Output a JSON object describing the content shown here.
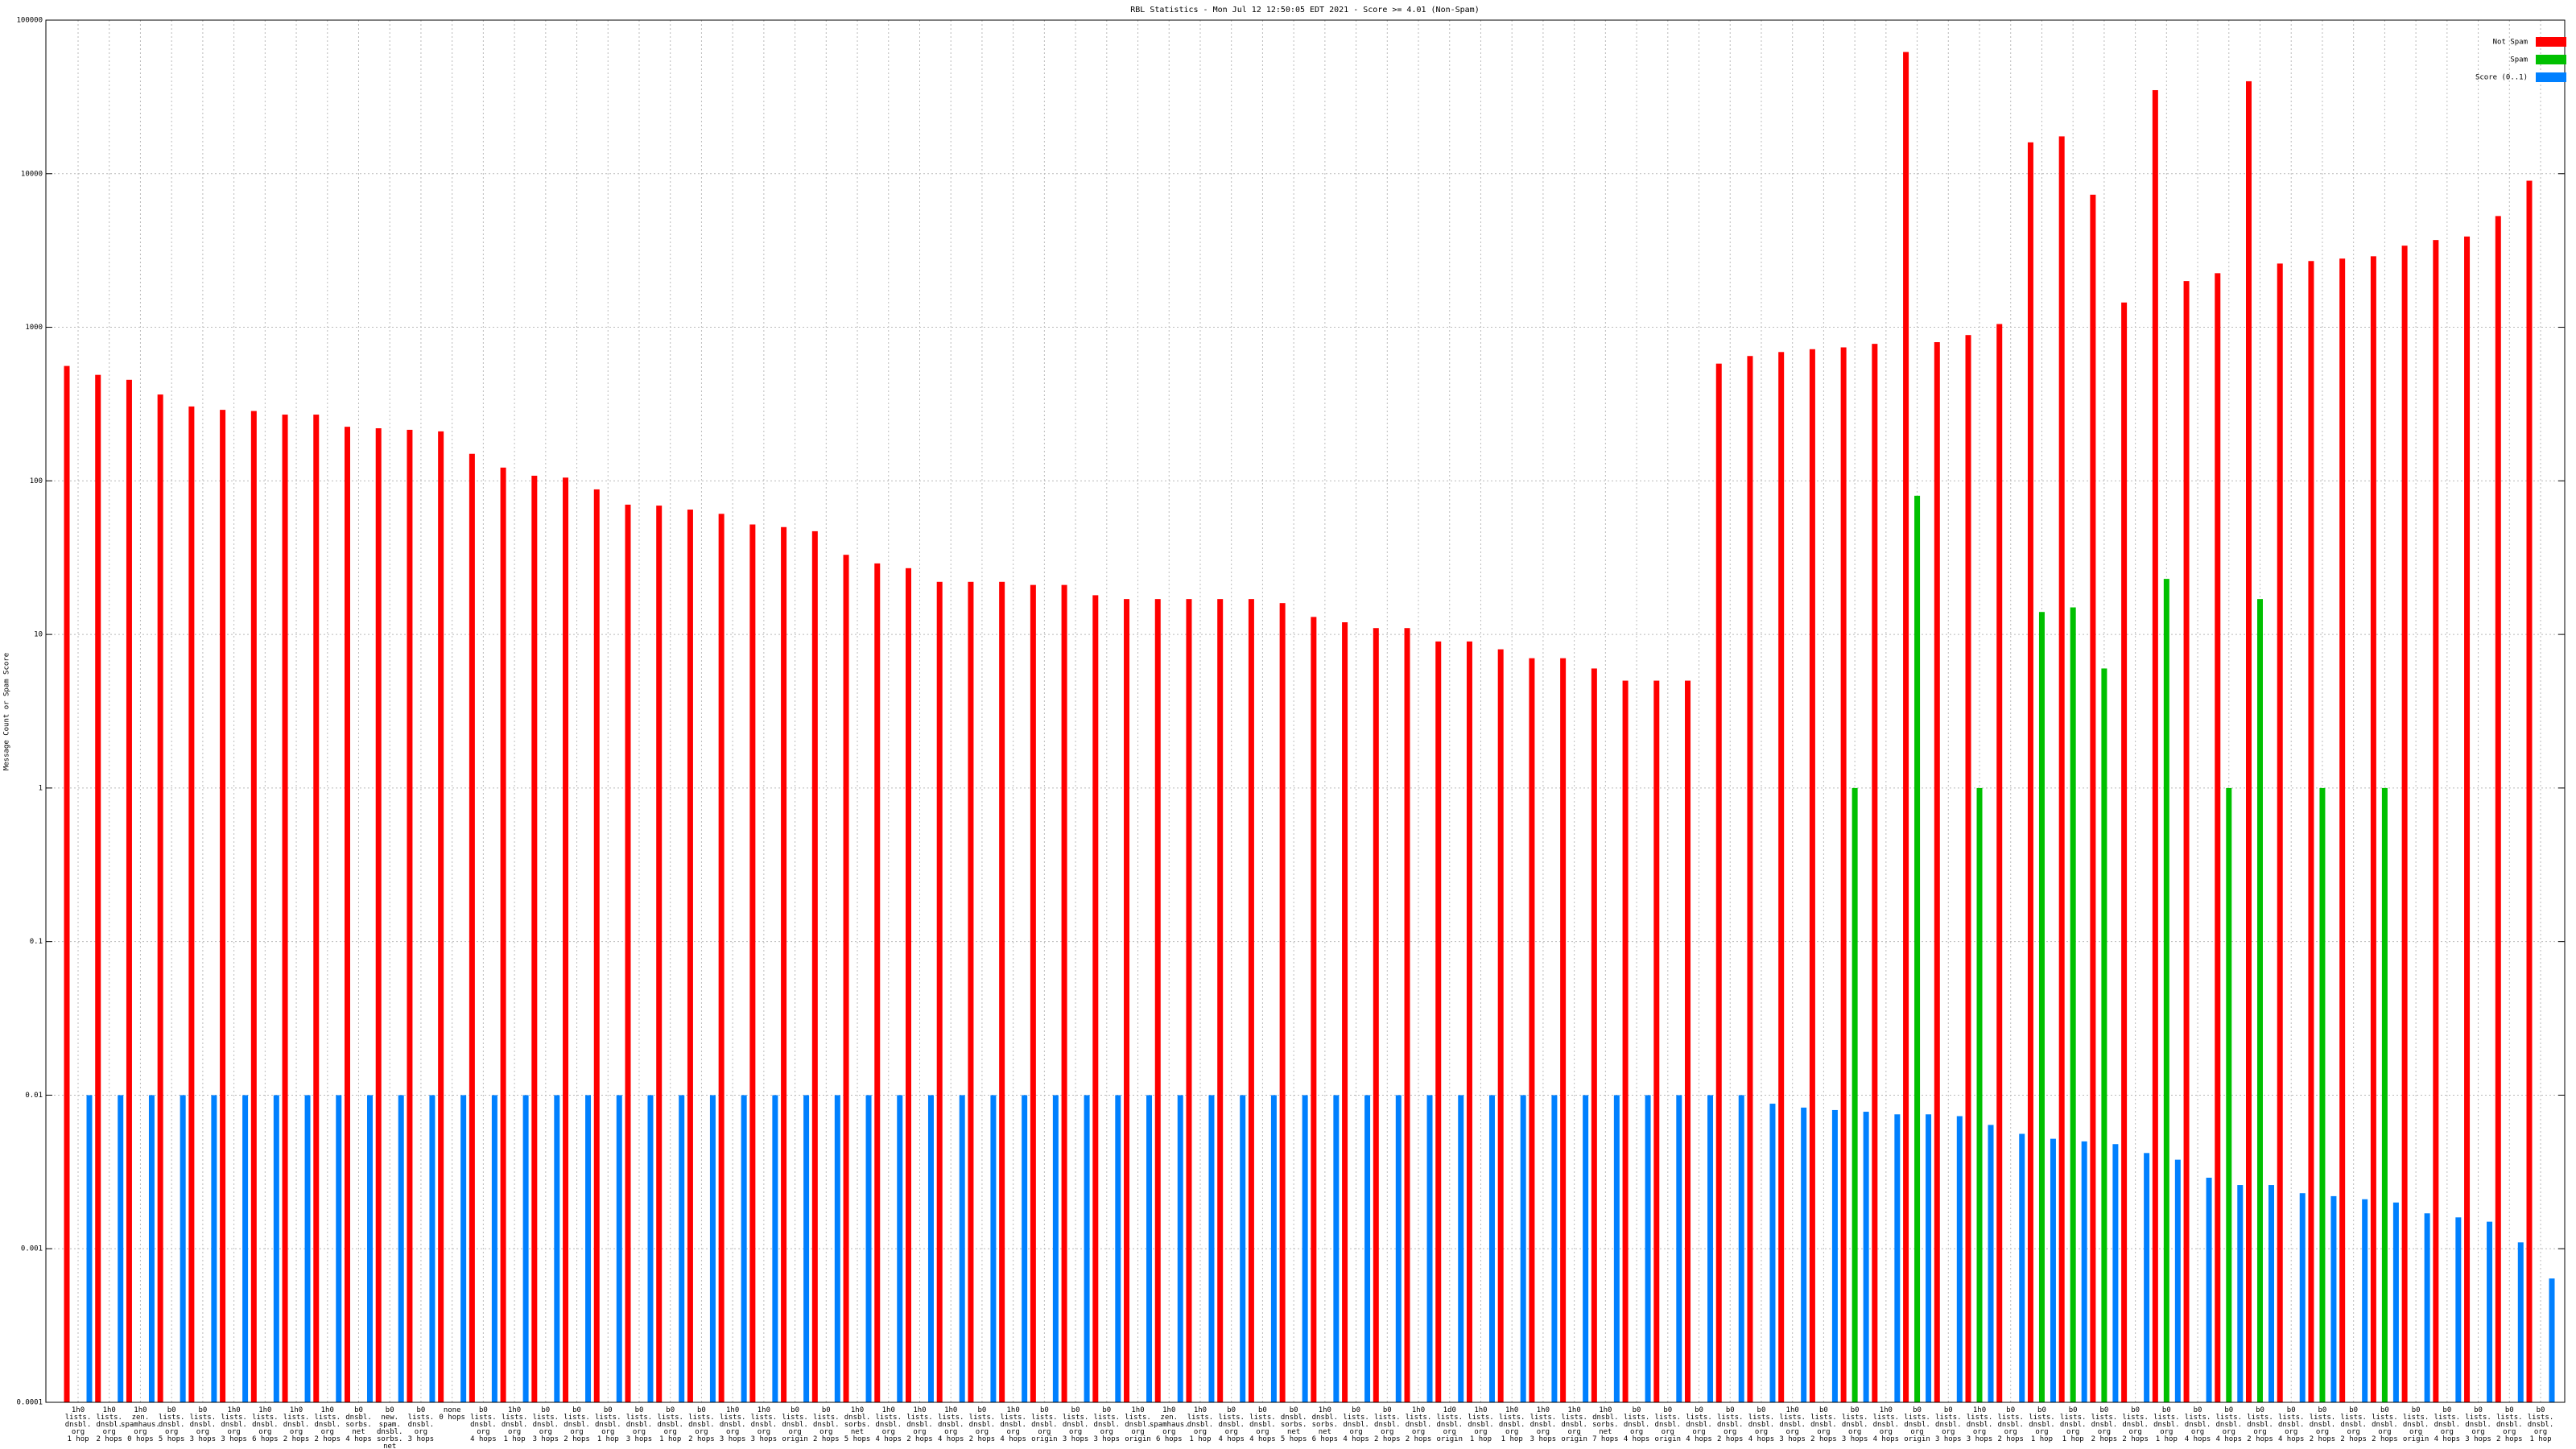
{
  "chart_data": {
    "type": "bar",
    "title": "RBL Statistics - Mon Jul 12 12:50:05 EDT 2021 - Score >= 4.01 (Non-Spam)",
    "y_label": "Message Count or Spam Score",
    "log_scale": true,
    "grid": true,
    "legend": "top-right",
    "ylim": [
      0.0001,
      100000
    ],
    "yticks": [
      0.0001,
      0.001,
      0.01,
      0.1,
      1,
      10,
      100,
      1000,
      10000,
      100000
    ],
    "categories": [
      "1h0\nlists.\ndnsbl.\norg\n1 hop",
      "1h0\nlists.\ndnsbl.\norg\n2 hops",
      "1h0\nzen.\nspamhaus.\norg\n0 hops",
      "b0\nlists.\ndnsbl.\norg\n5 hops",
      "b0\nlists.\ndnsbl.\norg\n3 hops",
      "1h0\nlists.\ndnsbl.\norg\n3 hops",
      "1h0\nlists.\ndnsbl.\norg\n6 hops",
      "1h0\nlists.\ndnsbl.\norg\n2 hops",
      "1h0\nlists.\ndnsbl.\norg\n2 hops",
      "b0\ndnsbl.\nsorbs.\nnet\n4 hops",
      "b0\nnew.\nspam.\ndnsbl.\nsorbs.\nnet\n4 hops",
      "b0\nlists.\ndnsbl.\norg\n3 hops",
      "none\n0 hops",
      "b0\nlists.\ndnsbl.\norg\n4 hops",
      "1h0\nlists.\ndnsbl.\norg\n1 hop",
      "b0\nlists.\ndnsbl.\norg\n3 hops",
      "b0\nlists.\ndnsbl.\norg\n2 hops",
      "b0\nlists.\ndnsbl.\norg\n1 hop",
      "b0\nlists.\ndnsbl.\norg\n3 hops",
      "b0\nlists.\ndnsbl.\norg\n1 hop",
      "b0\nlists.\ndnsbl.\norg\n2 hops",
      "1h0\nlists.\ndnsbl.\norg\n3 hops",
      "1h0\nlists.\ndnsbl.\norg\n3 hops",
      "b0\nlists.\ndnsbl.\norg\norigin",
      "b0\nlists.\ndnsbl.\norg\n2 hops",
      "1h0\ndnsbl.\nsorbs.\nnet\n5 hops",
      "1h0\nlists.\ndnsbl.\norg\n4 hops",
      "1h0\nlists.\ndnsbl.\norg\n2 hops",
      "1h0\nlists.\ndnsbl.\norg\n4 hops",
      "b0\nlists.\ndnsbl.\norg\n2 hops",
      "1h0\nlists.\ndnsbl.\norg\n4 hops",
      "b0\nlists.\ndnsbl.\norg\norigin",
      "b0\nlists.\ndnsbl.\norg\n3 hops",
      "b0\nlists.\ndnsbl.\norg\n3 hops",
      "1h0\nlists.\ndnsbl.\norg\norigin",
      "1h0\nzen.\nspamhaus.\norg\n6 hops",
      "1h0\nlists.\ndnsbl.\norg\n1 hop",
      "b0\nlists.\ndnsbl.\norg\n4 hops",
      "b0\nlists.\ndnsbl.\norg\n4 hops",
      "b0\ndnsbl.\nsorbs.\nnet\n5 hops",
      "1h0\ndnsbl.\nsorbs.\nnet\n6 hops",
      "b0\nlists.\ndnsbl.\norg\n4 hops",
      "b0\nlists.\ndnsbl.\norg\n2 hops",
      "1h0\nlists.\ndnsbl.\norg\n2 hops",
      "1d0\nlists.\ndnsbl.\norg\norigin",
      "1h0\nlists.\ndnsbl.\norg\n1 hop",
      "1h0\nlists.\ndnsbl.\norg\n1 hop",
      "1h0\nlists.\ndnsbl.\norg\n3 hops",
      "1h0\nlists.\ndnsbl.\norg\norigin",
      "1h0\ndnsbl.\nsorbs.\nnet\n7 hops",
      "b0\nlists.\ndnsbl.\norg\n4 hops",
      "b0\nlists.\ndnsbl.\norg\norigin",
      "b0\nlists.\ndnsbl.\norg\n4 hops",
      "b0\nlists.\ndnsbl.\norg\n2 hops",
      "b0\nlists.\ndnsbl.\norg\n4 hops",
      "1h0\nlists.\ndnsbl.\norg\n3 hops",
      "b0\nlists.\ndnsbl.\norg\n2 hops",
      "b0\nlists.\ndnsbl.\norg\n3 hops",
      "1h0\nlists.\ndnsbl.\norg\n4 hops",
      "b0\nlists.\ndnsbl.\norg\norigin",
      "b0\nlists.\ndnsbl.\norg\n3 hops",
      "1h0\nlists.\ndnsbl.\norg\n3 hops",
      "b0\nlists.\ndnsbl.\norg\n2 hops",
      "b0\nlists.\ndnsbl.\norg\n1 hop",
      "b0\nlists.\ndnsbl.\norg\n1 hop",
      "b0\nlists.\ndnsbl.\norg\n2 hops",
      "b0\nlists.\ndnsbl.\norg\n2 hops",
      "b0\nlists.\ndnsbl.\norg\n1 hop",
      "b0\nlists.\ndnsbl.\norg\n4 hops",
      "b0\nlists.\ndnsbl.\norg\n4 hops",
      "b0\nlists.\ndnsbl.\norg\n2 hops",
      "b0\nlists.\ndnsbl.\norg\n4 hops",
      "b0\nlists.\ndnsbl.\norg\n2 hops",
      "b0\nlists.\ndnsbl.\norg\n2 hops",
      "b0\nlists.\ndnsbl.\norg\n2 hops",
      "b0\nlists.\ndnsbl.\norg\norigin",
      "b0\nlists.\ndnsbl.\norg\n4 hops",
      "b0\nlists.\ndnsbl.\norg\n3 hops",
      "b0\nlists.\ndnsbl.\norg\n2 hops",
      "b0\nlists.\ndnsbl.\norg\n1 hop"
    ],
    "series": [
      {
        "name": "Not Spam",
        "color": "#ff0000",
        "values": [
          560,
          490,
          455,
          365,
          305,
          290,
          285,
          270,
          270,
          225,
          220,
          215,
          210,
          150,
          122,
          108,
          105,
          88,
          70,
          69,
          65,
          61,
          52,
          50,
          47,
          33,
          29,
          27,
          22,
          22,
          22,
          21,
          21,
          18,
          17,
          17,
          17,
          17,
          17,
          16,
          13,
          12,
          11,
          11,
          9,
          9,
          8,
          7,
          7,
          6,
          5,
          5,
          5,
          580,
          650,
          690,
          720,
          740,
          780,
          62000,
          800,
          890,
          1050,
          16000,
          17500,
          7300,
          1450,
          35000,
          2000,
          2250,
          40000,
          2600,
          2700,
          2800,
          2900,
          3400,
          3700,
          3900,
          5300,
          9000
        ]
      },
      {
        "name": "Spam",
        "color": "#00c000",
        "values": [
          null,
          null,
          null,
          null,
          null,
          null,
          null,
          null,
          null,
          null,
          null,
          null,
          null,
          null,
          null,
          null,
          null,
          null,
          null,
          null,
          null,
          null,
          null,
          null,
          null,
          null,
          null,
          null,
          null,
          null,
          null,
          null,
          null,
          null,
          null,
          null,
          null,
          null,
          null,
          null,
          null,
          null,
          null,
          null,
          null,
          null,
          null,
          null,
          null,
          null,
          null,
          null,
          null,
          null,
          null,
          null,
          null,
          1,
          null,
          80,
          null,
          1,
          null,
          14,
          15,
          6,
          null,
          23,
          null,
          1,
          17,
          null,
          1,
          null,
          1,
          null,
          null,
          null,
          null,
          null
        ]
      },
      {
        "name": "Score (0..1)",
        "color": "#0080ff",
        "values": [
          0.01,
          0.01,
          0.01,
          0.01,
          0.01,
          0.01,
          0.01,
          0.01,
          0.01,
          0.01,
          0.01,
          0.01,
          0.01,
          0.01,
          0.01,
          0.01,
          0.01,
          0.01,
          0.01,
          0.01,
          0.01,
          0.01,
          0.01,
          0.01,
          0.01,
          0.01,
          0.01,
          0.01,
          0.01,
          0.01,
          0.01,
          0.01,
          0.01,
          0.01,
          0.01,
          0.01,
          0.01,
          0.01,
          0.01,
          0.01,
          0.01,
          0.01,
          0.01,
          0.01,
          0.01,
          0.01,
          0.01,
          0.01,
          0.01,
          0.01,
          0.01,
          0.01,
          0.01,
          0.01,
          0.0088,
          0.0083,
          0.008,
          0.0078,
          0.0075,
          0.0075,
          0.0073,
          0.0064,
          0.0056,
          0.0052,
          0.005,
          0.0048,
          0.0042,
          0.0038,
          0.0029,
          0.0026,
          0.0026,
          0.0023,
          0.0022,
          0.0021,
          0.002,
          0.0017,
          0.0016,
          0.0015,
          0.0011,
          0.00064
        ]
      }
    ]
  }
}
